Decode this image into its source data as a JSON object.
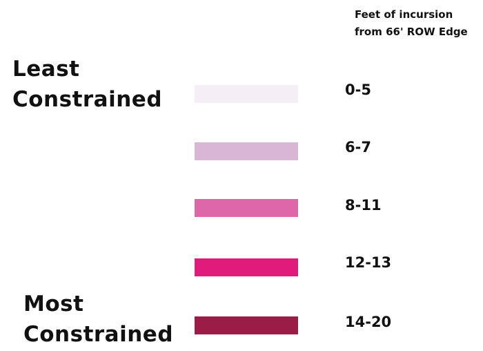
{
  "header": {
    "line1": "Feet of incursion",
    "line2": "from 66' ROW Edge"
  },
  "least_label": {
    "line1": "Least",
    "line2": "Constrained"
  },
  "most_label": {
    "line1": "Most",
    "line2": "Constrained"
  },
  "legend": {
    "items": [
      {
        "label": "0-5",
        "color": "#f6eef6"
      },
      {
        "label": "6-7",
        "color": "#d9b6d6"
      },
      {
        "label": "8-11",
        "color": "#dd67a8"
      },
      {
        "label": "12-13",
        "color": "#df1a7a"
      },
      {
        "label": "14-20",
        "color": "#9b1c46"
      }
    ]
  }
}
